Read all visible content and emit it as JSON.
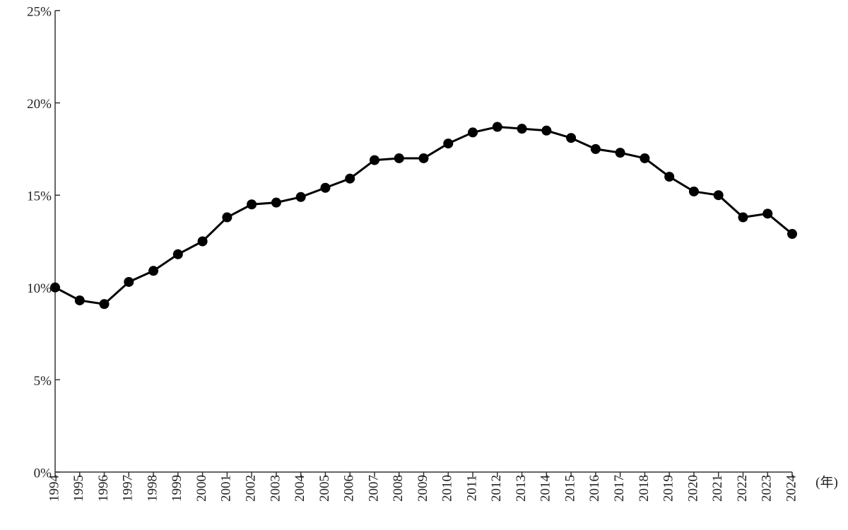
{
  "chart_data": {
    "type": "line",
    "x_axis_label": "(年)",
    "x": [
      1994,
      1995,
      1996,
      1997,
      1998,
      1999,
      2000,
      2001,
      2002,
      2003,
      2004,
      2005,
      2006,
      2007,
      2008,
      2009,
      2010,
      2011,
      2012,
      2013,
      2014,
      2015,
      2016,
      2017,
      2018,
      2019,
      2020,
      2021,
      2022,
      2023,
      2024
    ],
    "values": [
      10.0,
      9.3,
      9.1,
      10.3,
      10.9,
      11.8,
      12.5,
      13.8,
      14.5,
      14.6,
      14.9,
      15.4,
      15.9,
      16.9,
      17.0,
      17.0,
      17.8,
      18.4,
      18.7,
      18.6,
      18.5,
      18.1,
      17.5,
      17.3,
      17.0,
      16.0,
      15.2,
      15.0,
      13.8,
      14.0,
      12.9
    ],
    "color": "#000000",
    "xlim": [
      1994,
      2024
    ],
    "xticks": [
      1994,
      1995,
      1996,
      1997,
      1998,
      1999,
      2000,
      2001,
      2002,
      2003,
      2004,
      2005,
      2006,
      2007,
      2008,
      2009,
      2010,
      2011,
      2012,
      2013,
      2014,
      2015,
      2016,
      2017,
      2018,
      2019,
      2020,
      2021,
      2022,
      2023,
      2024
    ],
    "ylim": [
      0,
      25
    ],
    "yticks": [
      {
        "value": 0,
        "label": "0%"
      },
      {
        "value": 5,
        "label": "5%"
      },
      {
        "value": 10,
        "label": "10%"
      },
      {
        "value": 15,
        "label": "15%"
      },
      {
        "value": 20,
        "label": "20%"
      },
      {
        "value": 25,
        "label": "25%"
      }
    ]
  }
}
